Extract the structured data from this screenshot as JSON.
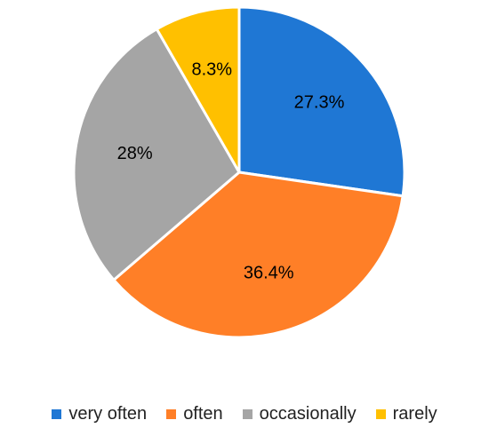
{
  "chart_data": {
    "type": "pie",
    "title": "",
    "start_angle_deg": 0,
    "direction": "clockwise",
    "legend_position": "bottom",
    "slices": [
      {
        "name": "very often",
        "value": 27.3,
        "label": "27.3%",
        "color": "#1F77D4"
      },
      {
        "name": "often",
        "value": 36.4,
        "label": "36.4%",
        "color": "#FF7F27"
      },
      {
        "name": "occasionally",
        "value": 28,
        "label": "28%",
        "color": "#A5A5A5"
      },
      {
        "name": "rarely",
        "value": 8.3,
        "label": "8.3%",
        "color": "#FFC000"
      }
    ]
  }
}
